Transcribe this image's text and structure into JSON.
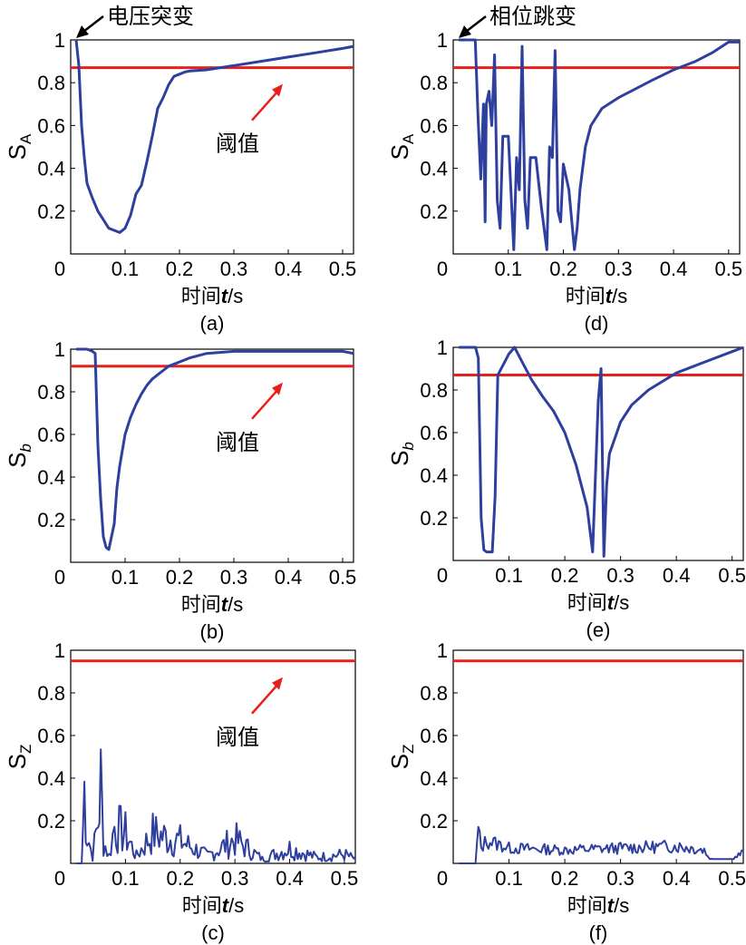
{
  "colors": {
    "series": "#2e3f9e",
    "threshold": "#e8201c",
    "annotation_arrow_black": "#000000",
    "annotation_arrow_red": "#e8201c"
  },
  "charts": [
    {
      "id": "a",
      "caption": "(a)",
      "xlabel": "时间t/s",
      "ylabel_main": "S",
      "ylabel_sub": "A",
      "ylabel_sub_italic": false,
      "xticks": [
        "0",
        "0.1",
        "0.2",
        "0.3",
        "0.4",
        "0.5"
      ],
      "yticks": [
        "0.2",
        "0.4",
        "0.6",
        "0.8",
        "1"
      ],
      "annotations": {
        "event": "电压突变",
        "threshold": "阈值"
      }
    },
    {
      "id": "d",
      "caption": "(d)",
      "xlabel": "时间t/s",
      "ylabel_main": "S",
      "ylabel_sub": "A",
      "ylabel_sub_italic": false,
      "xticks": [
        "0",
        "0.1",
        "0.2",
        "0.3",
        "0.4",
        "0.5"
      ],
      "yticks": [
        "0.2",
        "0.4",
        "0.6",
        "0.8",
        "1"
      ],
      "annotations": {
        "event": "相位跳变"
      }
    },
    {
      "id": "b",
      "caption": "(b)",
      "xlabel": "时间t/s",
      "ylabel_main": "S",
      "ylabel_sub": "b",
      "ylabel_sub_italic": true,
      "xticks": [
        "0",
        "0.1",
        "0.2",
        "0.3",
        "0.4",
        "0.5"
      ],
      "yticks": [
        "0.2",
        "0.4",
        "0.6",
        "0.8",
        "1"
      ],
      "annotations": {
        "threshold": "阈值"
      }
    },
    {
      "id": "e",
      "caption": "(e)",
      "xlabel": "时间t/s",
      "ylabel_main": "S",
      "ylabel_sub": "b",
      "ylabel_sub_italic": true,
      "xticks": [
        "0",
        "0.1",
        "0.2",
        "0.3",
        "0.4",
        "0.5"
      ],
      "yticks": [
        "0.2",
        "0.4",
        "0.6",
        "0.8",
        "1"
      ],
      "annotations": {}
    },
    {
      "id": "c",
      "caption": "(c)",
      "xlabel": "时间t/s",
      "ylabel_main": "S",
      "ylabel_sub": "Z",
      "ylabel_sub_italic": false,
      "xticks": [
        "0",
        "0.1",
        "0.2",
        "0.3",
        "0.4",
        "0.5"
      ],
      "yticks": [
        "0.2",
        "0.4",
        "0.6",
        "0.8",
        "1"
      ],
      "annotations": {
        "threshold": "阈值"
      }
    },
    {
      "id": "f",
      "caption": "(f)",
      "xlabel": "时间t/s",
      "ylabel_main": "S",
      "ylabel_sub": "Z",
      "ylabel_sub_italic": false,
      "xticks": [
        "0",
        "0.1",
        "0.2",
        "0.3",
        "0.4",
        "0.5"
      ],
      "yticks": [
        "0.2",
        "0.4",
        "0.6",
        "0.8",
        "1"
      ],
      "annotations": {}
    }
  ],
  "chart_data": [
    {
      "type": "line",
      "panel": "a",
      "xlim": [
        0,
        0.52
      ],
      "ylim": [
        0,
        1
      ],
      "threshold": 0.87,
      "grid": false,
      "x": [
        0.01,
        0.015,
        0.02,
        0.025,
        0.03,
        0.04,
        0.05,
        0.06,
        0.07,
        0.08,
        0.09,
        0.1,
        0.11,
        0.12,
        0.13,
        0.14,
        0.15,
        0.16,
        0.17,
        0.18,
        0.19,
        0.2,
        0.21,
        0.22,
        0.25,
        0.3,
        0.35,
        0.4,
        0.45,
        0.5,
        0.52
      ],
      "y": [
        1.0,
        0.88,
        0.6,
        0.45,
        0.33,
        0.26,
        0.2,
        0.16,
        0.12,
        0.11,
        0.1,
        0.12,
        0.18,
        0.28,
        0.32,
        0.43,
        0.55,
        0.68,
        0.73,
        0.79,
        0.83,
        0.84,
        0.85,
        0.855,
        0.86,
        0.88,
        0.9,
        0.92,
        0.94,
        0.96,
        0.97
      ]
    },
    {
      "type": "line",
      "panel": "d",
      "xlim": [
        0,
        0.52
      ],
      "ylim": [
        0,
        1
      ],
      "threshold": 0.87,
      "grid": false,
      "x": [
        0.01,
        0.04,
        0.045,
        0.05,
        0.055,
        0.058,
        0.06,
        0.065,
        0.07,
        0.075,
        0.08,
        0.085,
        0.09,
        0.1,
        0.11,
        0.115,
        0.12,
        0.125,
        0.13,
        0.135,
        0.14,
        0.15,
        0.16,
        0.17,
        0.175,
        0.18,
        0.185,
        0.19,
        0.195,
        0.2,
        0.21,
        0.22,
        0.225,
        0.23,
        0.24,
        0.25,
        0.27,
        0.3,
        0.33,
        0.36,
        0.4,
        0.44,
        0.47,
        0.5,
        0.52
      ],
      "y": [
        1.0,
        1.0,
        0.65,
        0.35,
        0.7,
        0.15,
        0.7,
        0.76,
        0.6,
        0.93,
        0.25,
        0.12,
        0.55,
        0.55,
        0.02,
        0.45,
        0.3,
        0.97,
        0.25,
        0.12,
        0.45,
        0.45,
        0.22,
        0.02,
        0.5,
        0.45,
        0.95,
        0.2,
        0.15,
        0.42,
        0.3,
        0.02,
        0.12,
        0.3,
        0.5,
        0.6,
        0.68,
        0.73,
        0.77,
        0.81,
        0.86,
        0.9,
        0.94,
        0.99,
        0.99
      ]
    },
    {
      "type": "line",
      "panel": "b",
      "xlim": [
        0,
        0.52
      ],
      "ylim": [
        0,
        1
      ],
      "threshold": 0.92,
      "grid": false,
      "x": [
        0.01,
        0.03,
        0.04,
        0.045,
        0.05,
        0.055,
        0.06,
        0.065,
        0.07,
        0.075,
        0.08,
        0.085,
        0.09,
        0.1,
        0.11,
        0.12,
        0.13,
        0.14,
        0.15,
        0.16,
        0.17,
        0.18,
        0.2,
        0.22,
        0.25,
        0.3,
        0.35,
        0.4,
        0.45,
        0.5,
        0.52
      ],
      "y": [
        1.0,
        1.0,
        0.99,
        0.98,
        0.55,
        0.3,
        0.12,
        0.07,
        0.06,
        0.12,
        0.18,
        0.35,
        0.45,
        0.6,
        0.68,
        0.74,
        0.79,
        0.83,
        0.86,
        0.88,
        0.9,
        0.92,
        0.94,
        0.96,
        0.98,
        0.99,
        0.99,
        0.99,
        0.99,
        0.99,
        0.98
      ]
    },
    {
      "type": "line",
      "panel": "e",
      "xlim": [
        0,
        0.52
      ],
      "ylim": [
        0,
        1
      ],
      "threshold": 0.87,
      "grid": false,
      "x": [
        0.01,
        0.04,
        0.045,
        0.05,
        0.055,
        0.06,
        0.07,
        0.075,
        0.08,
        0.09,
        0.1,
        0.11,
        0.12,
        0.14,
        0.16,
        0.18,
        0.2,
        0.22,
        0.24,
        0.25,
        0.26,
        0.265,
        0.27,
        0.275,
        0.28,
        0.3,
        0.32,
        0.35,
        0.4,
        0.45,
        0.5,
        0.52
      ],
      "y": [
        1.0,
        1.0,
        0.95,
        0.2,
        0.05,
        0.04,
        0.04,
        0.3,
        0.87,
        0.92,
        0.97,
        1.0,
        0.95,
        0.85,
        0.77,
        0.7,
        0.6,
        0.45,
        0.25,
        0.04,
        0.75,
        0.9,
        0.02,
        0.35,
        0.5,
        0.65,
        0.73,
        0.8,
        0.88,
        0.93,
        0.98,
        1.0
      ]
    },
    {
      "type": "line",
      "panel": "c",
      "xlim": [
        0,
        0.52
      ],
      "ylim": [
        0,
        1
      ],
      "threshold": 0.95,
      "grid": false,
      "x": [
        0.01,
        0.02,
        0.025,
        0.03,
        0.04,
        0.05,
        0.055,
        0.06,
        0.07,
        0.08,
        0.1,
        0.12,
        0.15,
        0.2,
        0.25,
        0.3,
        0.35,
        0.4,
        0.45,
        0.5,
        0.52
      ],
      "y": [
        0.0,
        0.0,
        0.5,
        0.2,
        0.05,
        0.28,
        0.53,
        0.15,
        0.05,
        0.25,
        0.2,
        0.05,
        0.2,
        0.15,
        0.05,
        0.16,
        0.03,
        0.1,
        0.04,
        0.06,
        0.03
      ],
      "note": "noisy decaying oscillation"
    },
    {
      "type": "line",
      "panel": "f",
      "xlim": [
        0,
        0.52
      ],
      "ylim": [
        0,
        1
      ],
      "threshold": 0.95,
      "grid": false,
      "x": [
        0.01,
        0.04,
        0.045,
        0.05,
        0.06,
        0.1,
        0.2,
        0.3,
        0.4,
        0.45,
        0.46,
        0.5,
        0.52
      ],
      "y": [
        0.0,
        0.0,
        0.18,
        0.08,
        0.12,
        0.08,
        0.07,
        0.08,
        0.09,
        0.07,
        0.02,
        0.02,
        0.06
      ],
      "note": "low-amplitude noise"
    }
  ]
}
